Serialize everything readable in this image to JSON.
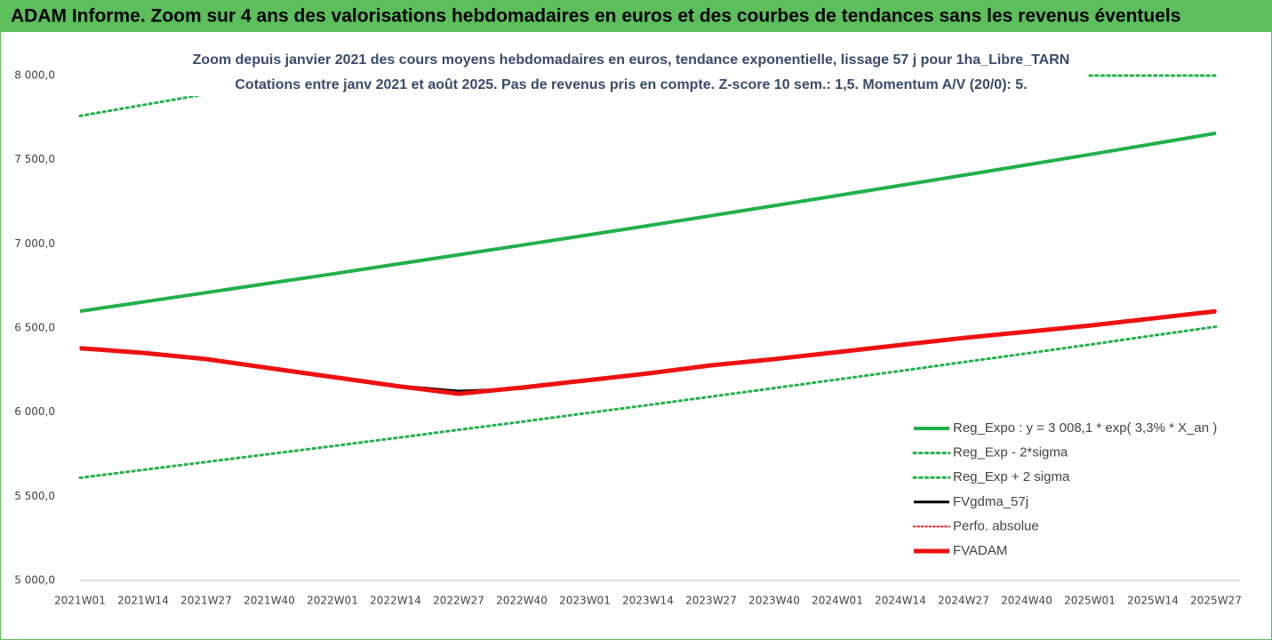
{
  "chart_data": {
    "type": "line",
    "title": "ADAM Informe. Zoom sur 4 ans des valorisations hebdomadaires en euros et des courbes de tendances sans les revenus éventuels",
    "subtitle": [
      "Zoom depuis janvier 2021 des cours moyens hebdomadaires en euros, tendance exponentielle, lissage 57 j pour 1ha_Libre_TARN",
      "Cotations entre janv 2021 et août 2025.  Pas de revenus pris en compte. Z-score 10 sem.: 1,5. Momentum A/V (20/0): 5."
    ],
    "categories": [
      "2021W01",
      "2021W14",
      "2021W27",
      "2021W40",
      "2022W01",
      "2022W14",
      "2022W27",
      "2022W40",
      "2023W01",
      "2023W14",
      "2023W27",
      "2023W40",
      "2024W01",
      "2024W14",
      "2024W27",
      "2024W40",
      "2025W01",
      "2025W14",
      "2025W27"
    ],
    "ylim": [
      5000,
      8000
    ],
    "yticks": [
      {
        "value": 5000,
        "label": "5 000,0"
      },
      {
        "value": 5500,
        "label": "5 500,0"
      },
      {
        "value": 6000,
        "label": "6 000,0"
      },
      {
        "value": 6500,
        "label": "6 500,0"
      },
      {
        "value": 7000,
        "label": "7 000,0"
      },
      {
        "value": 7500,
        "label": "7 500,0"
      },
      {
        "value": 8000,
        "label": "8 000,0"
      }
    ],
    "grid": false,
    "legend": "lower right",
    "series": [
      {
        "name": "Reg_Expo : y = 3 008,1 * exp( 3,3% *  X_an )",
        "color": "#22b04b",
        "line_style": "solid",
        "line_width": 4,
        "values": [
          6600,
          6655,
          6710,
          6766,
          6821,
          6878,
          6935,
          6992,
          7050,
          7108,
          7167,
          7227,
          7287,
          7347,
          7408,
          7469,
          7531,
          7594,
          7657
        ]
      },
      {
        "name": "Reg_Exp - 2*sigma",
        "color": "#22b04b",
        "line_style": "dotted",
        "line_width": 3,
        "values": [
          5610,
          5657,
          5704,
          5751,
          5798,
          5846,
          5895,
          5943,
          5993,
          6042,
          6092,
          6143,
          6194,
          6245,
          6297,
          6349,
          6401,
          6455,
          6508
        ]
      },
      {
        "name": "Reg_Exp + 2 sigma",
        "color": "#22b04b",
        "line_style": "dotted",
        "line_width": 3,
        "values": [
          7760,
          7825,
          7890,
          null,
          null,
          null,
          null,
          null,
          null,
          null,
          null,
          null,
          null,
          null,
          null,
          null,
          8000,
          8000,
          8000
        ]
      },
      {
        "name": "FVgdma_57j",
        "color": "#000000",
        "line_style": "solid",
        "line_width": 3,
        "values": [
          6380,
          6352,
          6315,
          6262,
          6209,
          6158,
          6125,
          6140,
          6188,
          6230,
          6278,
          6315,
          6357,
          6399,
          6441,
          6478,
          6515,
          6557,
          6600
        ]
      },
      {
        "name": "Perfo. absolue",
        "color": "#e31a1c",
        "line_style": "dotted",
        "line_width": 2,
        "values": [
          6380,
          6352,
          6315,
          6262,
          6209,
          6156,
          6109,
          6146,
          6188,
          6230,
          6278,
          6315,
          6357,
          6399,
          6441,
          6478,
          6515,
          6557,
          6600
        ]
      },
      {
        "name": "FVADAM",
        "color": "#ee1111",
        "line_style": "solid",
        "line_width": 5,
        "values": [
          6380,
          6352,
          6315,
          6262,
          6209,
          6156,
          6109,
          6146,
          6188,
          6230,
          6278,
          6315,
          6357,
          6399,
          6441,
          6478,
          6515,
          6557,
          6600
        ]
      }
    ]
  }
}
